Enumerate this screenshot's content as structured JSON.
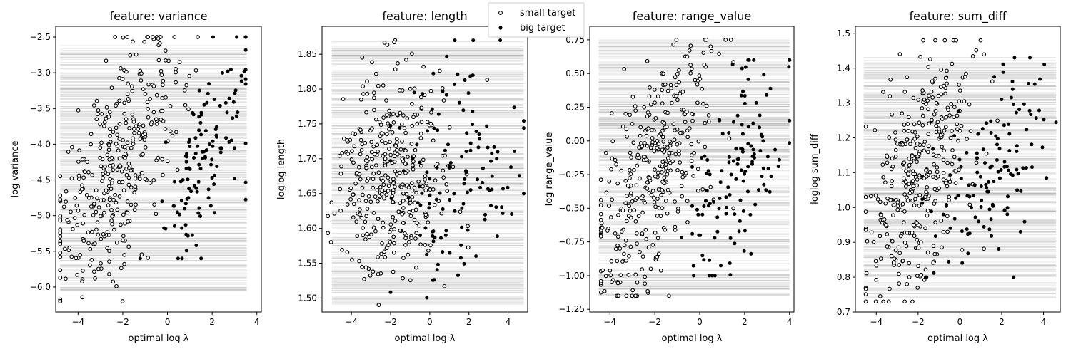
{
  "legend": {
    "small_label": "small target",
    "big_label": "big target"
  },
  "chart_data": [
    {
      "type": "scatter",
      "title": "feature: variance",
      "xlabel": "optimal log λ",
      "ylabel": "log variance",
      "xlim": [
        -5.0,
        4.2
      ],
      "ylim": [
        -6.35,
        -2.35
      ],
      "xticks": [
        -4,
        -2,
        0,
        2,
        4
      ],
      "yticks": [
        -6.0,
        -5.5,
        -5.0,
        -4.5,
        -4.0,
        -3.5,
        -3.0,
        -2.5
      ],
      "ytick_decimals": 1,
      "band": {
        "x_min": -4.8,
        "x_max": 3.55,
        "y_min": -6.1,
        "y_max": -2.6
      },
      "small_x": {
        "center": -2.3,
        "spread": 1.4,
        "min": -4.8,
        "max": 1.5
      },
      "big_x": {
        "center": 1.8,
        "spread": 1.0,
        "min": -1.6,
        "max": 3.5
      },
      "small_y": {
        "min": -6.2,
        "max": -2.5
      },
      "big_y": {
        "min": -5.6,
        "max": -2.5
      },
      "trend": 0.35
    },
    {
      "type": "scatter",
      "title": "feature: length",
      "xlabel": "optimal log λ",
      "ylabel": "loglog length",
      "xlim": [
        -5.5,
        5.0
      ],
      "ylim": [
        1.48,
        1.89
      ],
      "xticks": [
        -4,
        -2,
        0,
        2,
        4
      ],
      "yticks": [
        1.5,
        1.55,
        1.6,
        1.65,
        1.7,
        1.75,
        1.8,
        1.85
      ],
      "ytick_decimals": 2,
      "band": {
        "x_min": -5.0,
        "x_max": 4.8,
        "y_min": 1.49,
        "y_max": 1.87
      },
      "small_x": {
        "center": -2.0,
        "spread": 1.4,
        "min": -5.2,
        "max": 3.0
      },
      "big_x": {
        "center": 1.5,
        "spread": 1.6,
        "min": -2.0,
        "max": 4.8
      },
      "small_y": {
        "min": 1.49,
        "max": 1.87
      },
      "big_y": {
        "min": 1.49,
        "max": 1.87
      },
      "trend": 0.0
    },
    {
      "type": "scatter",
      "title": "feature: range_value",
      "xlabel": "optimal log λ",
      "ylabel": "log range_value",
      "xlim": [
        -4.9,
        4.2
      ],
      "ylim": [
        -1.27,
        0.85
      ],
      "xticks": [
        -4,
        -2,
        0,
        2,
        4
      ],
      "yticks": [
        -1.25,
        -1.0,
        -0.75,
        -0.5,
        -0.25,
        0.0,
        0.25,
        0.5,
        0.75
      ],
      "ytick_decimals": 2,
      "band": {
        "x_min": -4.5,
        "x_max": 4.0,
        "y_min": -1.15,
        "y_max": 0.75
      },
      "small_x": {
        "center": -2.0,
        "spread": 1.3,
        "min": -4.4,
        "max": 1.5
      },
      "big_x": {
        "center": 1.7,
        "spread": 1.1,
        "min": -1.2,
        "max": 4.0
      },
      "small_y": {
        "min": -1.15,
        "max": 0.75
      },
      "big_y": {
        "min": -1.0,
        "max": 0.6
      },
      "trend": 0.3
    },
    {
      "type": "scatter",
      "title": "feature: sum_diff",
      "xlabel": "optimal log λ",
      "ylabel": "loglog sum_diff",
      "xlim": [
        -5.0,
        4.8
      ],
      "ylim": [
        0.7,
        1.52
      ],
      "xticks": [
        -4,
        -2,
        0,
        2,
        4
      ],
      "yticks": [
        0.7,
        0.8,
        0.9,
        1.0,
        1.1,
        1.2,
        1.3,
        1.4,
        1.5
      ],
      "ytick_decimals": 1,
      "band": {
        "x_min": -4.6,
        "x_max": 4.6,
        "y_min": 0.74,
        "y_max": 1.44
      },
      "small_x": {
        "center": -2.0,
        "spread": 1.3,
        "min": -4.5,
        "max": 1.8
      },
      "big_x": {
        "center": 1.5,
        "spread": 1.4,
        "min": -1.8,
        "max": 4.6
      },
      "small_y": {
        "min": 0.73,
        "max": 1.48
      },
      "big_y": {
        "min": 0.8,
        "max": 1.43
      },
      "trend": 0.25
    }
  ]
}
